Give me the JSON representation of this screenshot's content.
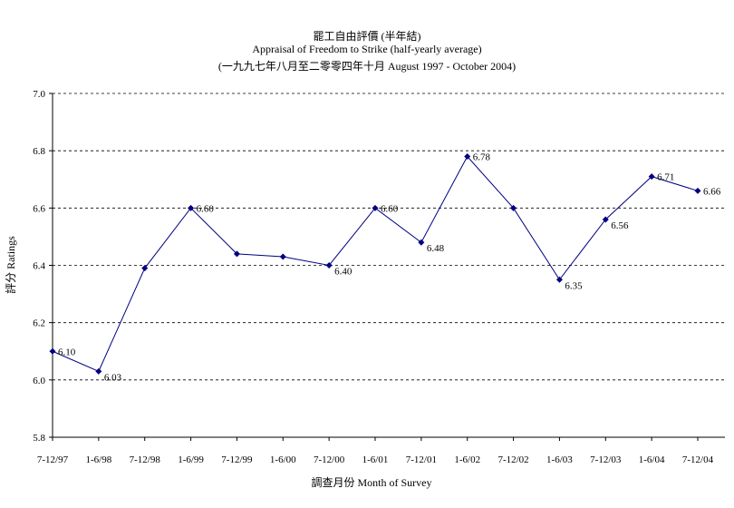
{
  "chart_data": {
    "type": "line",
    "title": "罷工自由評價 (半年結)",
    "subtitle": "Appraisal of Freedom to Strike (half-yearly average)",
    "subtitle2": "(一九九七年八月至二零零四年十月 August 1997 - October 2004)",
    "xlabel": "調查月份 Month of Survey",
    "ylabel": "評分 Ratings",
    "ylim": [
      5.8,
      7.0
    ],
    "yticks": [
      "7.0",
      "6.8",
      "6.6",
      "6.4",
      "6.2",
      "6.0",
      "5.8"
    ],
    "grid": "horizontal dashed",
    "categories": [
      "7-12/97",
      "1-6/98",
      "7-12/98",
      "1-6/99",
      "7-12/99",
      "1-6/00",
      "7-12/00",
      "1-6/01",
      "7-12/01",
      "1-6/02",
      "7-12/02",
      "1-6/03",
      "7-12/03",
      "1-6/04",
      "7-12/04"
    ],
    "values": [
      6.1,
      6.03,
      6.39,
      6.6,
      6.44,
      6.43,
      6.4,
      6.6,
      6.48,
      6.78,
      6.6,
      6.35,
      6.56,
      6.71,
      6.66
    ],
    "data_labels": [
      "6.10",
      "6.03",
      "",
      "6.60",
      "",
      "",
      "6.40",
      "6.60",
      "6.48",
      "6.78",
      "",
      "6.35",
      "6.56",
      "6.71",
      "6.66"
    ],
    "colors": {
      "line": "#000080",
      "marker": "#000080",
      "grid": "#000000"
    }
  }
}
